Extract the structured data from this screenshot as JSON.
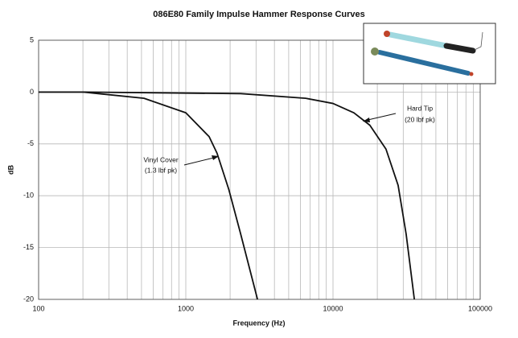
{
  "chart_data": {
    "type": "line",
    "title": "086E80 Family Impulse Hammer Response Curves",
    "x_label": "Frequency (Hz)",
    "y_label": "dB",
    "log_x": true,
    "grid": true,
    "xlim": [
      100,
      100000
    ],
    "xticks": [
      100,
      1000,
      10000,
      100000
    ],
    "ylim": [
      -20,
      5
    ],
    "yticks": [
      5,
      0,
      -5,
      -10,
      -15,
      -20
    ],
    "series": [
      {
        "name": "Vinyl Cover",
        "color": "#111111",
        "x": [
          100,
          200,
          520,
          1000,
          1440,
          1630,
          1960,
          2360,
          3070
        ],
        "values": [
          0,
          0,
          -0.6,
          -2,
          -4.3,
          -5.9,
          -9.4,
          -13.7,
          -20
        ]
      },
      {
        "name": "Hard Tip",
        "color": "#111111",
        "x": [
          100,
          200,
          1000,
          2360,
          6520,
          10000,
          13870,
          17800,
          22900,
          27700,
          31400,
          35700
        ],
        "values": [
          0,
          0,
          -0.1,
          -0.15,
          -0.6,
          -1.1,
          -2,
          -3.2,
          -5.5,
          -9,
          -13.7,
          -20
        ]
      }
    ],
    "annotations": [
      {
        "lines": [
          "Vinyl Cover",
          "(1.3 lbf pk)"
        ]
      },
      {
        "lines": [
          "Hard Tip",
          "(20 lbf pk)"
        ]
      }
    ]
  }
}
